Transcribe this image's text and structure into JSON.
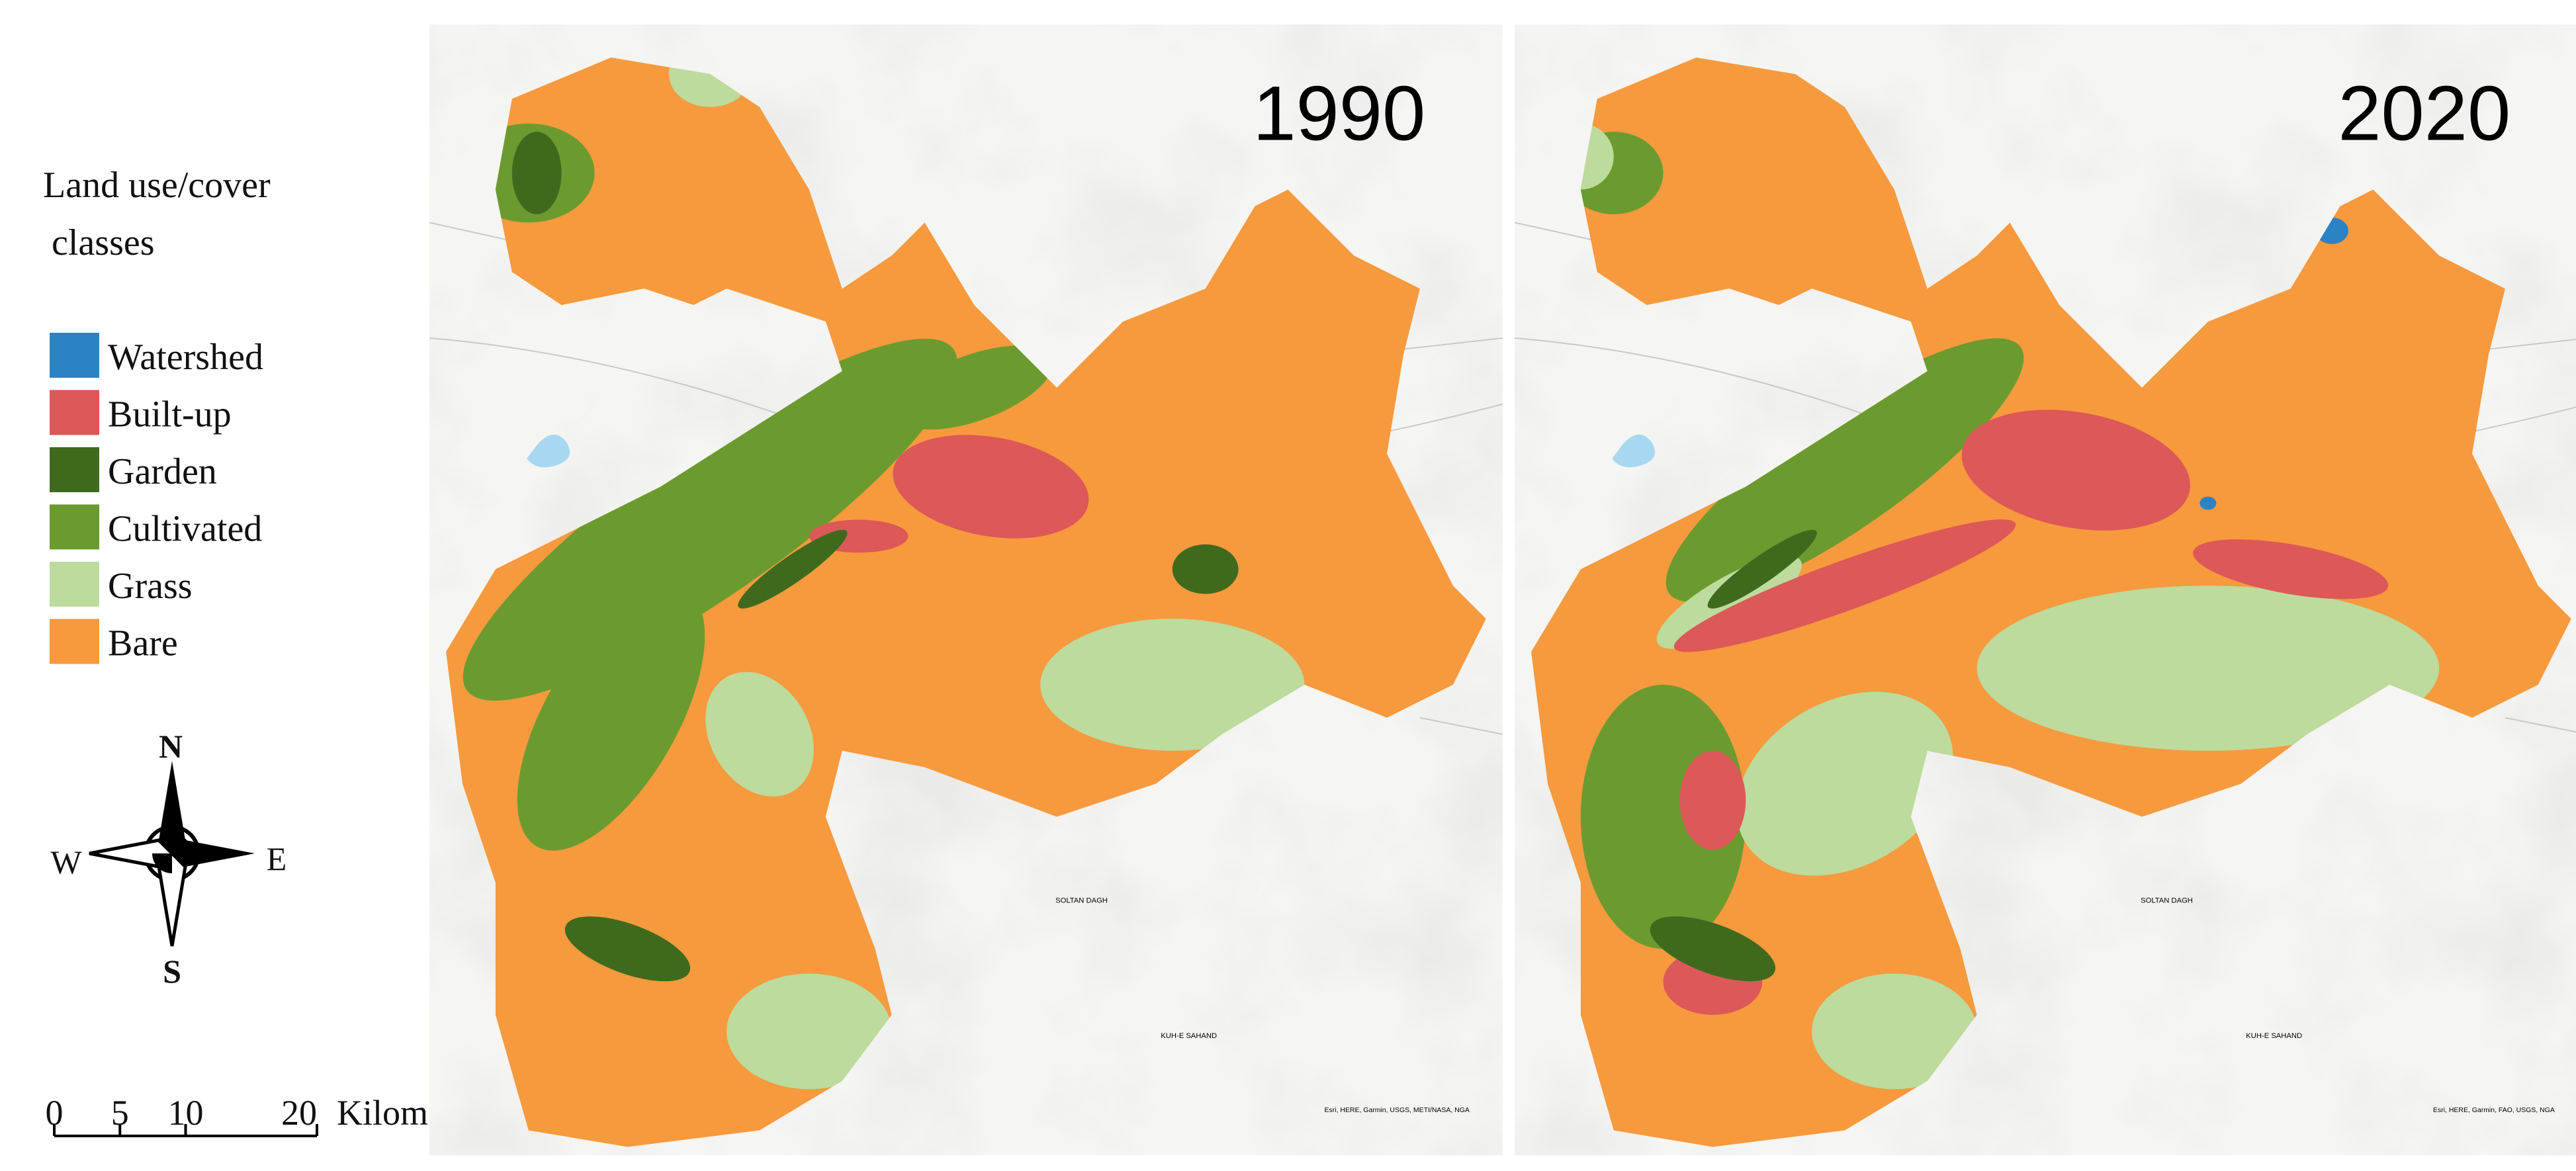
{
  "legend": {
    "title": "Land use/cover",
    "subtitle": "classes",
    "classes": [
      {
        "label": "Watershed",
        "color": "#2b83c4"
      },
      {
        "label": "Built-up",
        "color": "#dd5858"
      },
      {
        "label": "Garden",
        "color": "#3f6a1e"
      },
      {
        "label": "Cultivated",
        "color": "#6b9b2f"
      },
      {
        "label": "Grass",
        "color": "#bcdb9c"
      },
      {
        "label": "Bare",
        "color": "#f7993d"
      }
    ]
  },
  "compass": {
    "n": "N",
    "e": "E",
    "s": "S",
    "w": "W"
  },
  "scale_bar": {
    "ticks": [
      0,
      5,
      10,
      20
    ],
    "unit": "Kilometers"
  },
  "maps": [
    {
      "year": "1990",
      "places": [
        "SOLTAN DAGH",
        "KUH-E SAHAND"
      ],
      "credit": "Esri, HERE, Garmin, USGS, METI/NASA, NGA"
    },
    {
      "year": "2020",
      "places": [
        "SOLTAN DAGH",
        "KUH-E SAHAND"
      ],
      "credit": "Esri, HERE, Garmin, FAO, USGS, NGA"
    }
  ]
}
